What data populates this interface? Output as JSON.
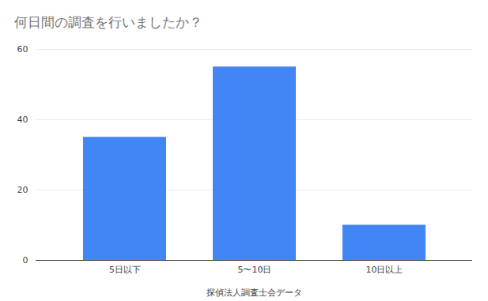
{
  "chart_data": {
    "type": "bar",
    "title": "何日間の調査を行いましたか？",
    "categories": [
      "5日以下",
      "5〜10日",
      "10日以上"
    ],
    "values": [
      35,
      55,
      10
    ],
    "color": "#4285f4",
    "xlabel": "探偵法人調査士会データ",
    "ylim": [
      0,
      60
    ],
    "yticks": [
      0,
      20,
      40,
      60
    ],
    "grid": true
  }
}
